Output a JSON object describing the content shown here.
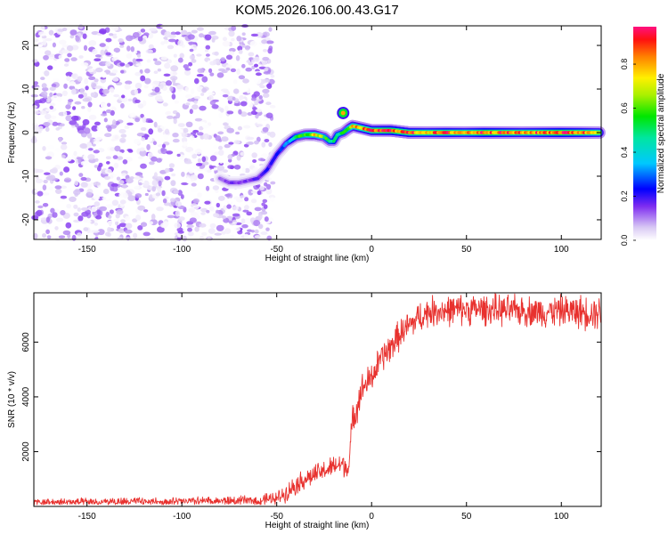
{
  "title": "KOM5.2026.106.00.43.G17",
  "chart_data": [
    {
      "type": "heatmap",
      "xlabel": "Height of straight line (km)",
      "ylabel": "Frequency (Hz)",
      "xlim": [
        -178,
        121
      ],
      "ylim": [
        -24.5,
        24.5
      ],
      "xticks": [
        -150,
        -100,
        -50,
        0,
        50,
        100
      ],
      "yticks": [
        -20,
        -10,
        0,
        10,
        20
      ],
      "colorbar": {
        "label": "Normalized spectral amplitude",
        "range": [
          0,
          0.97
        ],
        "ticks": [
          0,
          0.2,
          0.4,
          0.6,
          0.8
        ],
        "tick_labels": [
          "0.0",
          "0.2",
          "0.4",
          "0.6",
          "0.8"
        ]
      },
      "noise_region": {
        "x": [
          -178,
          -52
        ],
        "y": [
          -24.5,
          24.5
        ],
        "typical_amplitude": [
          0.0,
          0.15
        ]
      },
      "ridge": {
        "x": [
          -80,
          -75,
          -70,
          -65,
          -60,
          -55,
          -50,
          -45,
          -40,
          -35,
          -30,
          -25,
          -22,
          -20,
          -18,
          -15,
          -12,
          -10,
          -5,
          0,
          10,
          20,
          30,
          40,
          50,
          60,
          70,
          80,
          90,
          100,
          110,
          120
        ],
        "frequency": [
          -10.5,
          -11.5,
          -11.5,
          -11.0,
          -10.5,
          -8.5,
          -5.0,
          -2.5,
          -1.0,
          -0.5,
          -0.5,
          -1.0,
          -2.0,
          -2.0,
          -0.5,
          0.0,
          1.0,
          1.5,
          1.0,
          0.5,
          0.5,
          0.0,
          0.0,
          0.0,
          0.0,
          0.0,
          0.0,
          0.0,
          0.0,
          0.0,
          0.0,
          0.0
        ],
        "amplitude": [
          0.12,
          0.15,
          0.15,
          0.15,
          0.18,
          0.2,
          0.22,
          0.3,
          0.5,
          0.6,
          0.75,
          0.55,
          0.5,
          0.45,
          0.5,
          0.5,
          0.6,
          0.75,
          0.8,
          0.85,
          0.9,
          0.85,
          0.8,
          0.85,
          0.8,
          0.9,
          0.85,
          0.8,
          0.85,
          0.9,
          0.85,
          0.75
        ]
      },
      "feature": {
        "x": -15,
        "frequency": 4.5,
        "amplitude": 0.8
      }
    },
    {
      "type": "line",
      "xlabel": "Height of straight line (km)",
      "ylabel": "SNR (10 * v/v)",
      "xlim": [
        -178,
        121
      ],
      "ylim": [
        0,
        7800
      ],
      "xticks": [
        -150,
        -100,
        -50,
        0,
        50,
        100
      ],
      "yticks": [
        2000,
        4000,
        6000
      ],
      "color": "#e8312e",
      "series": [
        {
          "x": [
            -178,
            -150,
            -120,
            -100,
            -80,
            -60,
            -50,
            -45,
            -40,
            -35,
            -30,
            -25,
            -20,
            -15,
            -12,
            -10,
            -8,
            -5,
            0,
            5,
            10,
            15,
            20,
            25,
            30,
            35,
            40,
            50,
            60,
            70,
            80,
            90,
            100,
            110,
            120
          ],
          "y": [
            150,
            150,
            180,
            180,
            200,
            220,
            300,
            500,
            800,
            1000,
            1150,
            1300,
            1450,
            1550,
            1400,
            3200,
            3600,
            4300,
            4700,
            5400,
            5800,
            6300,
            6600,
            6900,
            7100,
            7150,
            7150,
            7200,
            7200,
            7150,
            7150,
            7100,
            7150,
            7100,
            7100
          ],
          "noise_amplitude": [
            120,
            120,
            120,
            120,
            130,
            150,
            200,
            250,
            300,
            300,
            300,
            300,
            320,
            350,
            350,
            450,
            450,
            450,
            450,
            450,
            450,
            450,
            450,
            450,
            450,
            450,
            450,
            450,
            450,
            450,
            450,
            450,
            450,
            500,
            500
          ]
        }
      ]
    }
  ]
}
